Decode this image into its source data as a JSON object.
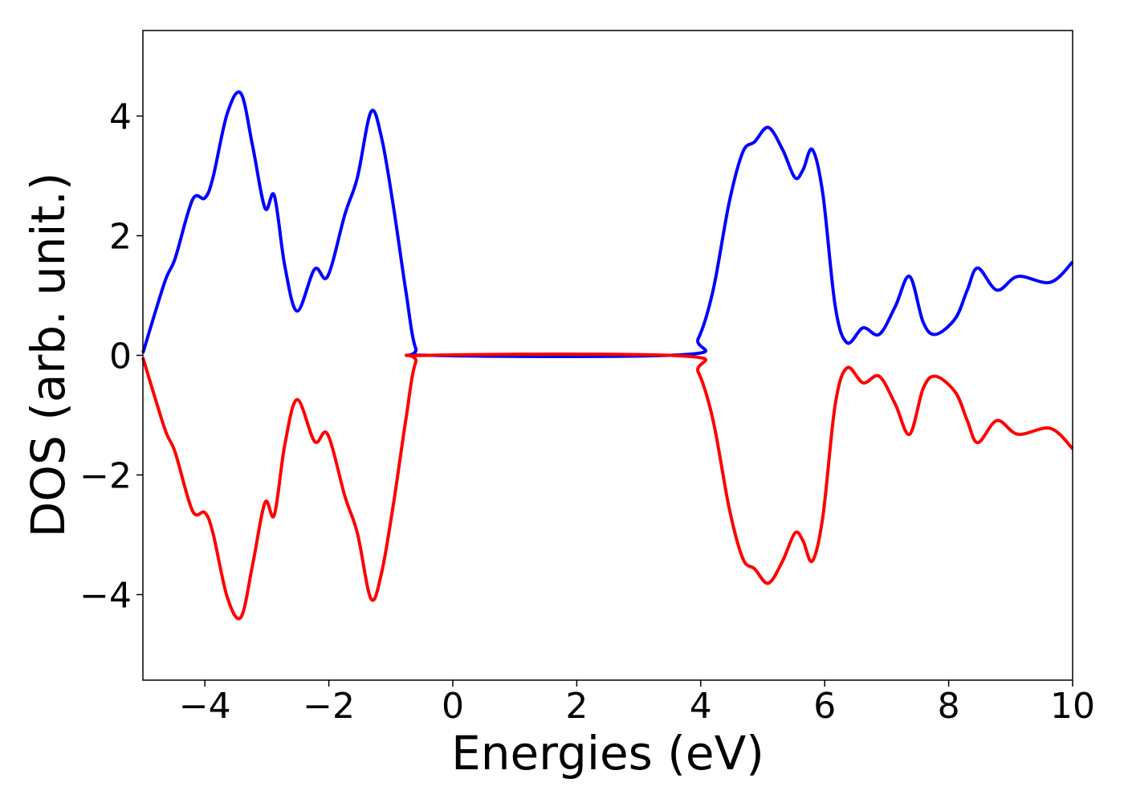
{
  "chart_data": {
    "type": "line",
    "xlabel": "Energies (eV)",
    "ylabel": "DOS (arb. unit.)",
    "x": [
      -5,
      -4.65,
      -4.48,
      -4.2,
      -4.0,
      -3.87,
      -3.64,
      -3.42,
      -3.23,
      -3.03,
      -2.88,
      -2.71,
      -2.51,
      -2.23,
      -2.02,
      -1.74,
      -1.54,
      -1.32,
      -1.15,
      -0.96,
      -0.76,
      -0.6,
      -0.38,
      3.7,
      3.96,
      4.2,
      4.46,
      4.68,
      4.87,
      5.09,
      5.32,
      5.52,
      5.65,
      5.8,
      5.97,
      6.17,
      6.36,
      6.62,
      6.88,
      7.14,
      7.37,
      7.59,
      7.79,
      8.11,
      8.3,
      8.47,
      8.78,
      9.12,
      9.64,
      10
    ],
    "series": [
      {
        "color": "#0000ff",
        "values": [
          0.04,
          1.22,
          1.62,
          2.6,
          2.63,
          2.97,
          4.04,
          4.38,
          3.5,
          2.46,
          2.67,
          1.49,
          0.74,
          1.44,
          1.32,
          2.36,
          2.97,
          4.07,
          3.64,
          2.5,
          1.09,
          0.12,
          0,
          0.01,
          0.28,
          1.09,
          2.56,
          3.4,
          3.57,
          3.81,
          3.44,
          2.97,
          3.1,
          3.44,
          2.7,
          0.82,
          0.21,
          0.46,
          0.35,
          0.82,
          1.32,
          0.55,
          0.35,
          0.62,
          1.09,
          1.46,
          1.09,
          1.32,
          1.22,
          1.56
        ]
      },
      {
        "color": "#ff0000",
        "values": [
          -0.04,
          -1.22,
          -1.62,
          -2.6,
          -2.63,
          -2.97,
          -4.04,
          -4.38,
          -3.5,
          -2.46,
          -2.67,
          -1.49,
          -0.74,
          -1.44,
          -1.32,
          -2.36,
          -2.97,
          -4.07,
          -3.64,
          -2.5,
          -1.09,
          -0.12,
          0,
          -0.01,
          -0.28,
          -1.09,
          -2.56,
          -3.4,
          -3.57,
          -3.81,
          -3.44,
          -2.97,
          -3.1,
          -3.44,
          -2.7,
          -0.82,
          -0.21,
          -0.46,
          -0.35,
          -0.82,
          -1.32,
          -0.55,
          -0.35,
          -0.62,
          -1.09,
          -1.46,
          -1.09,
          -1.32,
          -1.22,
          -1.56
        ]
      }
    ],
    "xlim": [
      -5,
      10
    ],
    "xticks": [
      {
        "value": -4,
        "label": "−4"
      },
      {
        "value": -2,
        "label": "−2"
      },
      0,
      2,
      4,
      6,
      8,
      10
    ],
    "ylim": [
      -5.43,
      5.43
    ],
    "yticks": [
      {
        "value": -4,
        "label": "−4"
      },
      {
        "value": -2,
        "label": "−2"
      },
      0,
      2,
      4
    ]
  }
}
